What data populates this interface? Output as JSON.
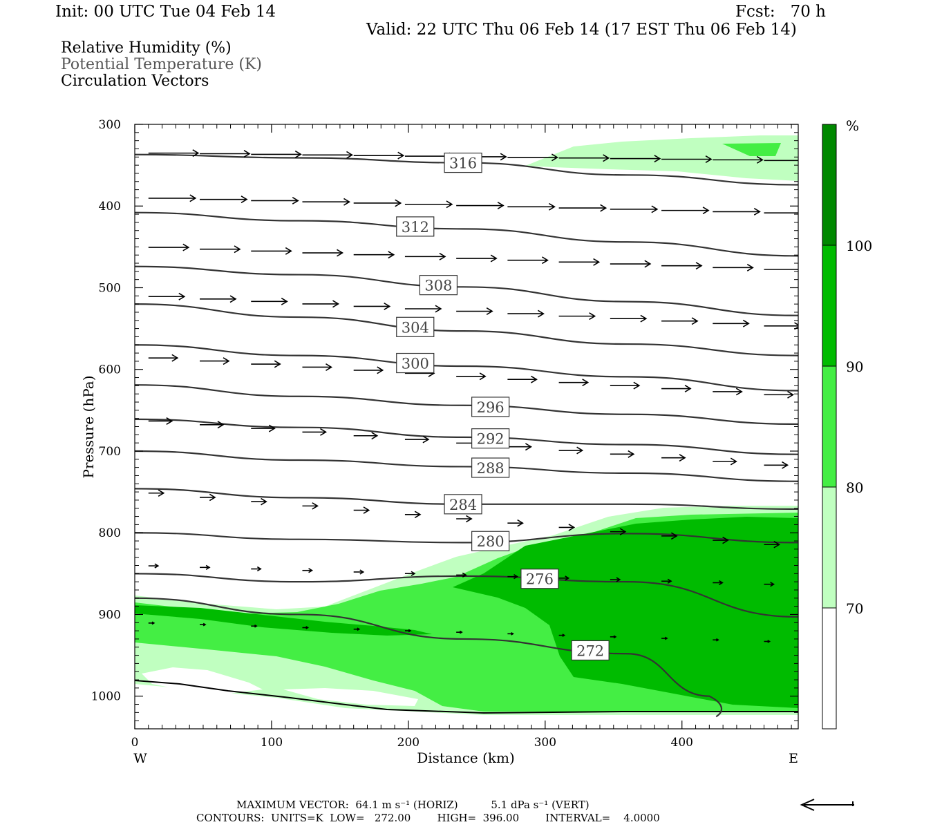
{
  "header": {
    "init": "Init: 00 UTC Tue 04 Feb 14",
    "fcst": "Fcst:   70 h",
    "valid": "Valid: 22 UTC Thu 06 Feb 14 (17 EST Thu 06 Feb 14)"
  },
  "legend": {
    "rh": "Relative Humidity (%)",
    "theta": "Potential Temperature (K)",
    "vectors": "Circulation Vectors"
  },
  "chart_data": {
    "type": "contour-cross-section",
    "xlabel": "Distance (km)",
    "ylabel": "Pressure (hPa)",
    "xlim": [
      0,
      485
    ],
    "ylim": [
      300,
      1040
    ],
    "x_ticks": [
      "0",
      "100",
      "200",
      "300",
      "400"
    ],
    "x_tick_values": [
      0,
      100,
      200,
      300,
      400
    ],
    "y_ticks": [
      "300",
      "400",
      "500",
      "600",
      "700",
      "800",
      "900",
      "1000"
    ],
    "y_tick_values": [
      300,
      400,
      500,
      600,
      700,
      800,
      900,
      1000
    ],
    "x_end_labels": {
      "left": "W",
      "right": "E"
    },
    "colorbar": {
      "unit": "%",
      "labels": [
        "70",
        "80",
        "90",
        "100"
      ],
      "levels": [
        70,
        80,
        90,
        100
      ],
      "colors": [
        "#ffffff",
        "#c0ffc0",
        "#44ee44",
        "#00bb00",
        "#008800"
      ]
    },
    "theta_contours": [
      {
        "label": "316",
        "x": [
          0,
          120,
          240,
          360,
          485
        ],
        "p": [
          337,
          341,
          347,
          362,
          374
        ]
      },
      {
        "label": "312",
        "x": [
          0,
          120,
          240,
          360,
          485
        ],
        "p": [
          408,
          418,
          428,
          444,
          461
        ]
      },
      {
        "label": "308",
        "x": [
          0,
          120,
          240,
          360,
          485
        ],
        "p": [
          474,
          484,
          499,
          517,
          534
        ]
      },
      {
        "label": "304",
        "x": [
          0,
          120,
          240,
          360,
          485
        ],
        "p": [
          520,
          536,
          553,
          569,
          583
        ]
      },
      {
        "label": "300",
        "x": [
          0,
          120,
          240,
          360,
          485
        ],
        "p": [
          570,
          583,
          596,
          609,
          626
        ]
      },
      {
        "label": "296",
        "x": [
          0,
          120,
          240,
          360,
          485
        ],
        "p": [
          619,
          633,
          644,
          655,
          667
        ]
      },
      {
        "label": "292",
        "x": [
          0,
          120,
          240,
          360,
          485
        ],
        "p": [
          661,
          671,
          683,
          692,
          704
        ]
      },
      {
        "label": "288",
        "x": [
          0,
          120,
          240,
          360,
          485
        ],
        "p": [
          700,
          711,
          719,
          727,
          737
        ]
      },
      {
        "label": "284",
        "x": [
          0,
          120,
          240,
          360,
          485
        ],
        "p": [
          746,
          757,
          765,
          765,
          771
        ]
      },
      {
        "label": "280",
        "x": [
          0,
          120,
          240,
          360,
          485
        ],
        "p": [
          800,
          808,
          812,
          801,
          812
        ]
      },
      {
        "label": "276",
        "x": [
          0,
          120,
          240,
          360,
          485
        ],
        "p": [
          850,
          860,
          853,
          860,
          903
        ]
      },
      {
        "label": "272",
        "x": [
          0,
          120,
          240,
          360,
          420
        ],
        "p": [
          880,
          900,
          930,
          948,
          1000
        ]
      }
    ],
    "rh_regions": [
      {
        "level": "70-80",
        "description": "upper-right band near 320-360 hPa, 280-485 km"
      },
      {
        "level": "70-80",
        "description": "lower boundary layer band 880-1030 hPa, 0-300 km"
      },
      {
        "level": "80-90",
        "description": "low-level moist layer 880-1020 hPa"
      },
      {
        "level": "90-100",
        "description": "deep moist layer 780-1020 hPa, 240-485 km"
      }
    ],
    "vectors": {
      "max_horiz": "64.1",
      "max_vert": "5.1",
      "levels_hPa": [
        335,
        390,
        450,
        510,
        585,
        662,
        750,
        840,
        910
      ]
    },
    "footer": {
      "line1": "MAXIMUM VECTOR:  64.1 m s⁻¹ (HORIZ)          5.1 dPa s⁻¹ (VERT)",
      "line2": "CONTOURS:  UNITS=K  LOW=   272.00        HIGH=  396.00        INTERVAL=    4.0000"
    }
  }
}
